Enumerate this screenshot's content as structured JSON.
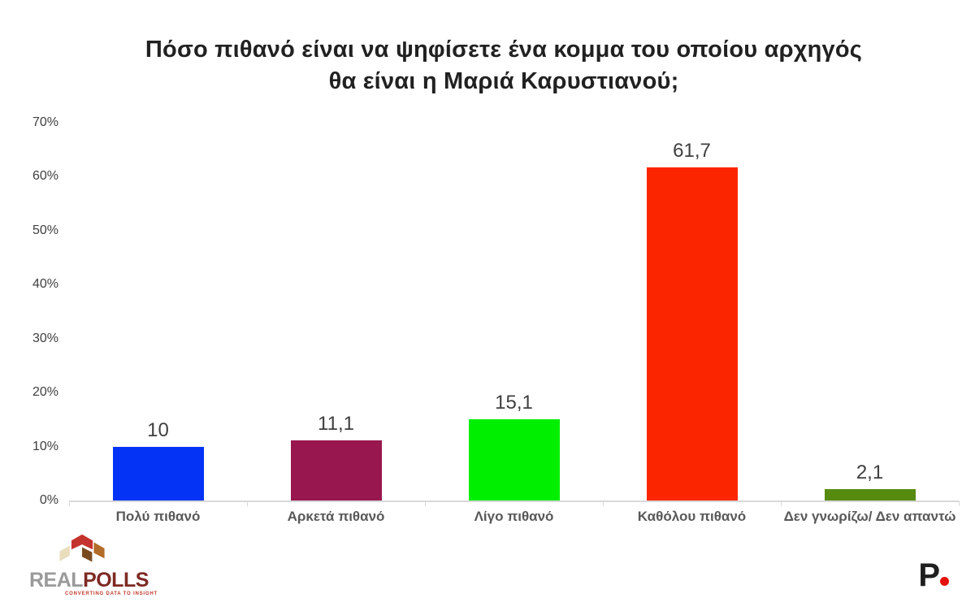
{
  "title": {
    "line1": "Πόσο πιθανό είναι να ψηφίσετε ένα κομμα του οποίου αρχηγός",
    "line2": "θα είναι η Μαριά Καρυστιανού;"
  },
  "chart_data": {
    "type": "bar",
    "title": "Πόσο πιθανό είναι να ψηφίσετε ένα κομμα του οποίου αρχηγός θα είναι η Μαριά Καρυστιανού;",
    "categories": [
      "Πολύ πιθανό",
      "Αρκετά πιθανό",
      "Λίγο πιθανό",
      "Καθόλου πιθανό",
      "Δεν γνωρίζω/ Δεν απαντώ"
    ],
    "values": [
      10,
      11.1,
      15.1,
      61.7,
      2.1
    ],
    "value_labels": [
      "10",
      "11,1",
      "15,1",
      "61,7",
      "2,1"
    ],
    "bar_colors": [
      "#0433f5",
      "#98174e",
      "#00ef00",
      "#fb2600",
      "#568b10"
    ],
    "xlabel": "",
    "ylabel": "",
    "ylim": [
      0,
      70
    ],
    "yticks": [
      0,
      10,
      20,
      30,
      40,
      50,
      60,
      70
    ],
    "ytick_labels": [
      "0%",
      "10%",
      "20%",
      "30%",
      "40%",
      "50%",
      "60%",
      "70%"
    ],
    "grid": false,
    "legend": false
  },
  "branding": {
    "realpolls": {
      "word_part1": "REAL",
      "word_part2": "POLLS",
      "tagline": "CONVERTING DATA TO INSIGHT",
      "cube_colors": {
        "top": "#c4332d",
        "left": "#e9ddbe",
        "right": "#b26b28",
        "bottom": "#7a4a1f"
      },
      "word_colors": {
        "real": "#9a9a9a",
        "polls": "#7d2a23",
        "tagline": "#c0392b"
      }
    },
    "pronews": {
      "letter": "P",
      "dot_color": "#e3120b"
    }
  },
  "style_colors": {
    "title_text": "#212121",
    "axis_labels": "#3f3f3f",
    "category_labels": "#595959",
    "axis_line": "#d8d8d8",
    "background": "#ffffff"
  }
}
